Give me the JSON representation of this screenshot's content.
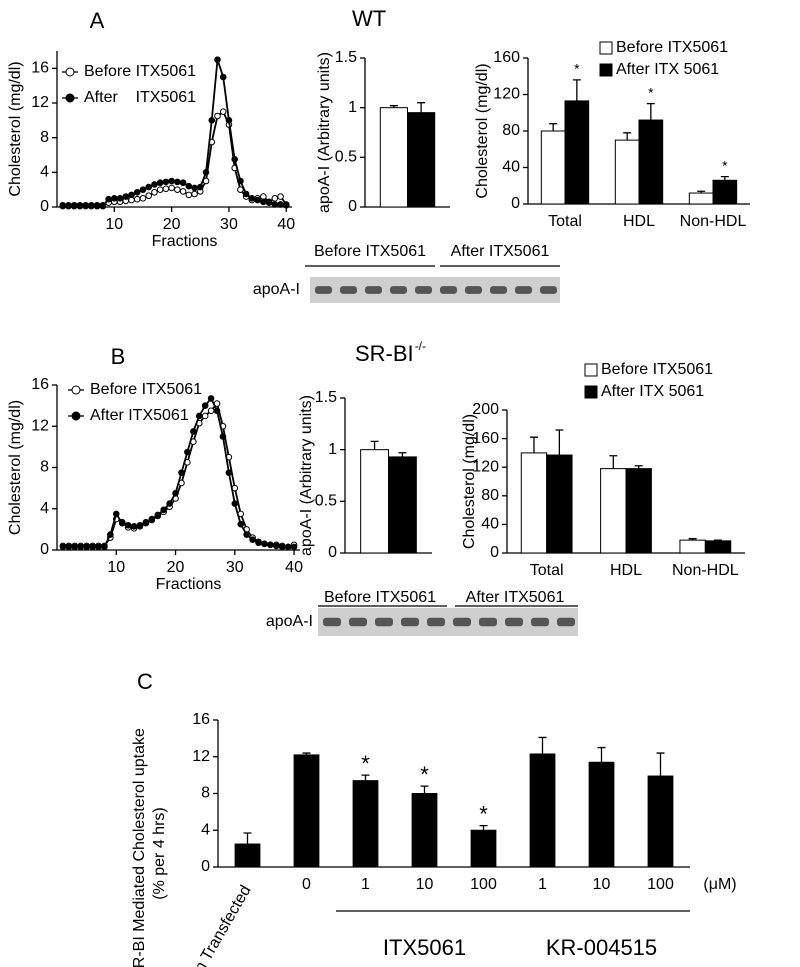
{
  "figure": {
    "panels": [
      {
        "label": "A",
        "title": "WT",
        "blot": {
          "label": "apoA-I",
          "groups": [
            "Before ITX5061",
            "After ITX5061"
          ]
        }
      },
      {
        "label": "B",
        "title": "SR-BI",
        "title_sup": "-/-",
        "blot": {
          "label": "apoA-I",
          "groups": [
            "Before ITX5061",
            "After ITX5061"
          ]
        }
      },
      {
        "label": "C"
      }
    ]
  },
  "chart_data": [
    {
      "type": "line",
      "xlabel": "Fractions",
      "ylabel": "Cholesterol (mg/dl)",
      "legend": "upper left",
      "x": [
        1,
        2,
        3,
        4,
        5,
        6,
        7,
        8,
        9,
        10,
        11,
        12,
        13,
        14,
        15,
        16,
        17,
        18,
        19,
        20,
        21,
        22,
        23,
        24,
        25,
        26,
        27,
        28,
        29,
        30,
        31,
        32,
        33,
        34,
        35,
        36,
        37,
        38,
        39,
        40
      ],
      "xlim": [
        0,
        41
      ],
      "xticks": [
        10,
        20,
        30,
        40
      ],
      "ylim": [
        0,
        18
      ],
      "yticks": [
        0,
        4,
        8,
        12,
        16
      ],
      "series": [
        {
          "name": "Before ITX5061",
          "color": "#000000",
          "marker_fill": "#ffffff",
          "values": [
            0.2,
            0.2,
            0.2,
            0.2,
            0.2,
            0.2,
            0.2,
            0.2,
            0.5,
            0.6,
            0.6,
            0.7,
            0.8,
            0.9,
            1.0,
            1.3,
            1.7,
            2.0,
            2.1,
            2.2,
            2.0,
            1.8,
            1.4,
            1.5,
            1.8,
            3.0,
            7.5,
            10.5,
            11.0,
            9.5,
            4.5,
            2.0,
            1.2,
            0.8,
            1.0,
            1.2,
            0.6,
            1.0,
            1.2,
            0.3
          ]
        },
        {
          "name": "After    ITX5061",
          "color": "#000000",
          "marker_fill": "#000000",
          "values": [
            0.1,
            0.1,
            0.1,
            0.1,
            0.1,
            0.1,
            0.1,
            0.1,
            0.9,
            1.0,
            1.0,
            1.2,
            1.4,
            1.7,
            2.0,
            2.3,
            2.6,
            2.8,
            2.9,
            3.0,
            2.9,
            2.8,
            2.4,
            2.2,
            2.3,
            4.0,
            10.0,
            17.0,
            15.0,
            10.0,
            5.5,
            3.0,
            1.5,
            1.0,
            0.8,
            0.6,
            0.5,
            0.3,
            0.3,
            0.2
          ]
        }
      ]
    },
    {
      "type": "bar",
      "ylabel": "apoA-I (Arbitrary units)",
      "categories": [
        null
      ],
      "ylim": [
        0,
        1.5
      ],
      "yticks": [
        0,
        0.5,
        1,
        1.5
      ],
      "series": [
        {
          "name": "Before ITX5061",
          "color": "#ffffff",
          "values": [
            1.0
          ],
          "errors": [
            0.02
          ]
        },
        {
          "name": "After ITX5061",
          "color": "#000000",
          "values": [
            0.95
          ],
          "errors": [
            0.1
          ]
        }
      ]
    },
    {
      "type": "bar",
      "ylabel": "Cholesterol (mg/dl)",
      "legend": "upper right",
      "categories": [
        "Total",
        "HDL",
        "Non-HDL"
      ],
      "ylim": [
        0,
        160
      ],
      "yticks": [
        0,
        40,
        80,
        120,
        160
      ],
      "series": [
        {
          "name": "Before ITX5061",
          "color": "#ffffff",
          "values": [
            80,
            70,
            12
          ],
          "errors": [
            8,
            8,
            2
          ]
        },
        {
          "name": "After ITX 5061",
          "color": "#000000",
          "values": [
            113,
            92,
            26
          ],
          "errors": [
            23,
            18,
            4
          ],
          "significance": [
            "*",
            "*",
            "*"
          ]
        }
      ]
    },
    {
      "type": "line",
      "xlabel": "Fractions",
      "ylabel": "Cholesterol (mg/dl)",
      "legend": "upper left",
      "x": [
        1,
        2,
        3,
        4,
        5,
        6,
        7,
        8,
        9,
        10,
        11,
        12,
        13,
        14,
        15,
        16,
        17,
        18,
        19,
        20,
        21,
        22,
        23,
        24,
        25,
        26,
        27,
        28,
        29,
        30,
        31,
        32,
        33,
        34,
        35,
        36,
        37,
        38,
        39,
        40
      ],
      "xlim": [
        0,
        41
      ],
      "xticks": [
        10,
        20,
        30,
        40
      ],
      "ylim": [
        0,
        16
      ],
      "yticks": [
        0,
        4,
        8,
        12,
        16
      ],
      "series": [
        {
          "name": "Before ITX5061",
          "color": "#000000",
          "marker_fill": "#ffffff",
          "values": [
            0.4,
            0.4,
            0.4,
            0.4,
            0.4,
            0.4,
            0.4,
            0.4,
            1.2,
            3.0,
            2.7,
            2.2,
            2.1,
            2.3,
            2.6,
            2.9,
            3.3,
            3.7,
            4.2,
            5.0,
            6.5,
            8.5,
            10.5,
            12.3,
            13.0,
            13.5,
            14.2,
            12.0,
            9.0,
            6.0,
            3.5,
            2.0,
            1.2,
            0.8,
            0.6,
            0.5,
            0.5,
            0.4,
            0.3,
            0.5
          ]
        },
        {
          "name": "After ITX5061",
          "color": "#000000",
          "marker_fill": "#000000",
          "values": [
            0.3,
            0.3,
            0.3,
            0.3,
            0.3,
            0.3,
            0.3,
            0.3,
            1.5,
            3.5,
            2.6,
            2.4,
            2.3,
            2.4,
            2.7,
            3.0,
            3.4,
            3.9,
            4.5,
            5.5,
            7.5,
            9.5,
            11.5,
            13.0,
            14.0,
            14.7,
            13.5,
            11.0,
            7.5,
            4.5,
            2.5,
            1.5,
            1.0,
            0.7,
            0.6,
            0.5,
            0.4,
            0.3,
            0.3,
            0.3
          ]
        }
      ]
    },
    {
      "type": "bar",
      "ylabel": "apoA-I (Arbitrary units)",
      "categories": [
        null
      ],
      "ylim": [
        0,
        1.5
      ],
      "yticks": [
        0,
        0.5,
        1,
        1.5
      ],
      "series": [
        {
          "name": "Before ITX5061",
          "color": "#ffffff",
          "values": [
            1.0
          ],
          "errors": [
            0.08
          ]
        },
        {
          "name": "After ITX5061",
          "color": "#000000",
          "values": [
            0.93
          ],
          "errors": [
            0.04
          ]
        }
      ]
    },
    {
      "type": "bar",
      "ylabel": "Cholesterol (mg/dl)",
      "legend": "upper right",
      "categories": [
        "Total",
        "HDL",
        "Non-HDL"
      ],
      "ylim": [
        0,
        200
      ],
      "yticks": [
        0,
        40,
        80,
        120,
        160,
        200
      ],
      "series": [
        {
          "name": "Before ITX5061",
          "color": "#ffffff",
          "values": [
            140,
            118,
            18
          ],
          "errors": [
            22,
            18,
            2
          ]
        },
        {
          "name": "After ITX 5061",
          "color": "#000000",
          "values": [
            137,
            118,
            17
          ],
          "errors": [
            35,
            4,
            1
          ]
        }
      ]
    },
    {
      "type": "bar",
      "ylabel": [
        "SR-BI  Mediated Cholesterol uptake",
        "(% per 4 hrs)"
      ],
      "categories": [
        "Non Transfected",
        "0",
        "1",
        "10",
        "100",
        "1",
        "10",
        "100"
      ],
      "unit_label": "(μM)",
      "group_labels": [
        "ITX5061",
        "KR-004515"
      ],
      "ylim": [
        0,
        16
      ],
      "yticks": [
        0,
        4,
        8,
        12,
        16
      ],
      "series": [
        {
          "color": "#000000",
          "values": [
            2.5,
            12.2,
            9.4,
            8.0,
            4.0,
            12.3,
            11.4,
            9.9
          ],
          "errors": [
            1.2,
            0.2,
            0.6,
            0.8,
            0.5,
            1.8,
            1.6,
            2.5
          ],
          "significance": [
            null,
            null,
            "*",
            "*",
            "*",
            null,
            null,
            null
          ]
        }
      ]
    }
  ]
}
